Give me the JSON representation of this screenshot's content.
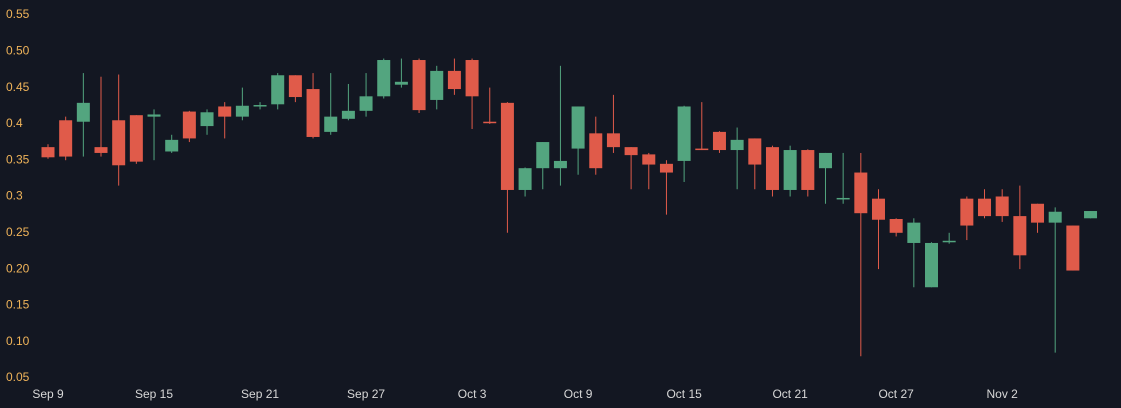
{
  "chart_data": {
    "type": "candlestick",
    "categories": [
      "Sep 9",
      null,
      null,
      null,
      null,
      null,
      "Sep 15",
      null,
      null,
      null,
      null,
      null,
      "Sep 21",
      null,
      null,
      null,
      null,
      null,
      "Sep 27",
      null,
      null,
      null,
      null,
      null,
      "Oct 3",
      null,
      null,
      null,
      null,
      null,
      "Oct 9",
      null,
      null,
      null,
      null,
      null,
      "Oct 15",
      null,
      null,
      null,
      null,
      null,
      "Oct 21",
      null,
      null,
      null,
      null,
      null,
      "Oct 27",
      null,
      null,
      null,
      null,
      null,
      "Nov 2",
      null,
      null,
      null,
      null,
      null
    ],
    "open": [
      0.368,
      0.405,
      0.403,
      0.368,
      0.405,
      0.412,
      0.41,
      0.362,
      0.417,
      0.397,
      0.424,
      0.41,
      0.424,
      0.427,
      0.467,
      0.448,
      0.389,
      0.407,
      0.418,
      0.438,
      0.454,
      0.488,
      0.433,
      0.473,
      0.488,
      0.403,
      0.429,
      0.309,
      0.339,
      0.339,
      0.366,
      0.387,
      0.387,
      0.368,
      0.358,
      0.345,
      0.349,
      0.366,
      0.389,
      0.364,
      0.38,
      0.368,
      0.309,
      0.364,
      0.339,
      0.298,
      0.333,
      0.297,
      0.269,
      0.236,
      0.175,
      0.237,
      0.297,
      0.297,
      0.3,
      0.273,
      0.29,
      0.264,
      0.26,
      0.27
    ],
    "high": [
      0.372,
      0.41,
      0.47,
      0.465,
      0.468,
      0.412,
      0.42,
      0.385,
      0.418,
      0.42,
      0.43,
      0.45,
      0.43,
      0.47,
      0.467,
      0.47,
      0.47,
      0.455,
      0.47,
      0.49,
      0.49,
      0.49,
      0.48,
      0.49,
      0.49,
      0.45,
      0.43,
      0.34,
      0.375,
      0.48,
      0.424,
      0.41,
      0.44,
      0.368,
      0.36,
      0.35,
      0.425,
      0.43,
      0.39,
      0.395,
      0.38,
      0.37,
      0.37,
      0.365,
      0.36,
      0.36,
      0.36,
      0.31,
      0.27,
      0.27,
      0.237,
      0.25,
      0.3,
      0.31,
      0.31,
      0.315,
      0.29,
      0.285,
      0.26,
      0.28
    ],
    "low": [
      0.352,
      0.35,
      0.355,
      0.355,
      0.315,
      0.345,
      0.35,
      0.36,
      0.375,
      0.385,
      0.38,
      0.405,
      0.42,
      0.42,
      0.43,
      0.38,
      0.385,
      0.405,
      0.41,
      0.435,
      0.45,
      0.415,
      0.42,
      0.44,
      0.393,
      0.4,
      0.25,
      0.3,
      0.31,
      0.315,
      0.33,
      0.33,
      0.36,
      0.31,
      0.31,
      0.275,
      0.32,
      0.364,
      0.36,
      0.31,
      0.31,
      0.3,
      0.3,
      0.3,
      0.29,
      0.29,
      0.08,
      0.2,
      0.245,
      0.175,
      0.175,
      0.235,
      0.24,
      0.27,
      0.265,
      0.2,
      0.25,
      0.085,
      0.198,
      0.27
    ],
    "close": [
      0.354,
      0.355,
      0.429,
      0.36,
      0.343,
      0.348,
      0.413,
      0.378,
      0.38,
      0.416,
      0.41,
      0.425,
      0.426,
      0.467,
      0.437,
      0.382,
      0.41,
      0.418,
      0.438,
      0.488,
      0.458,
      0.419,
      0.473,
      0.448,
      0.438,
      0.401,
      0.309,
      0.339,
      0.375,
      0.349,
      0.424,
      0.339,
      0.368,
      0.357,
      0.344,
      0.333,
      0.424,
      0.364,
      0.364,
      0.378,
      0.344,
      0.309,
      0.364,
      0.309,
      0.36,
      0.298,
      0.277,
      0.268,
      0.25,
      0.264,
      0.236,
      0.239,
      0.26,
      0.273,
      0.273,
      0.219,
      0.264,
      0.279,
      0.198,
      0.28
    ],
    "up_color": "#53a57f",
    "down_color": "#e05b4a",
    "ylim": [
      0.05,
      0.55
    ],
    "yticks": [
      0.55,
      {
        "value": 0.5,
        "label": "0.50"
      },
      0.45,
      0.4,
      0.35,
      0.3,
      0.25,
      {
        "value": 0.2,
        "label": "0.20"
      },
      0.15,
      {
        "value": 0.1,
        "label": "0.10"
      },
      0.05
    ],
    "grid": false
  }
}
